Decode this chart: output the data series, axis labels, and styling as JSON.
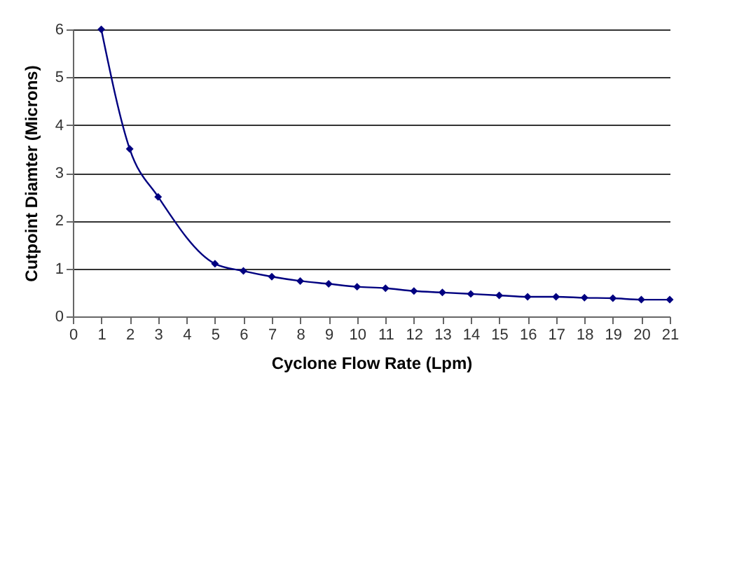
{
  "chart_data": {
    "type": "line",
    "xlabel": "Cyclone Flow Rate (Lpm)",
    "ylabel": "Cutpoint Diamter (Microns)",
    "x": [
      1,
      2,
      3,
      5,
      6,
      7,
      8,
      9,
      10,
      11,
      12,
      13,
      14,
      15,
      16,
      17,
      18,
      19,
      20,
      21
    ],
    "series": [
      {
        "color": "#000080",
        "values": [
          6,
          3.5,
          2.5,
          1.1,
          0.95,
          0.83,
          0.74,
          0.68,
          0.62,
          0.59,
          0.53,
          0.5,
          0.47,
          0.44,
          0.41,
          0.41,
          0.39,
          0.38,
          0.35,
          0.35
        ]
      }
    ],
    "xlim": [
      0,
      21
    ],
    "xticks": [
      0,
      1,
      2,
      3,
      4,
      5,
      6,
      7,
      8,
      9,
      10,
      11,
      12,
      13,
      14,
      15,
      16,
      17,
      18,
      19,
      20,
      21
    ],
    "ylim": [
      0,
      6
    ],
    "yticks": [
      0,
      1,
      2,
      3,
      4,
      5,
      6
    ],
    "grid": "y",
    "marker": "diamond",
    "line_style": "solid"
  }
}
